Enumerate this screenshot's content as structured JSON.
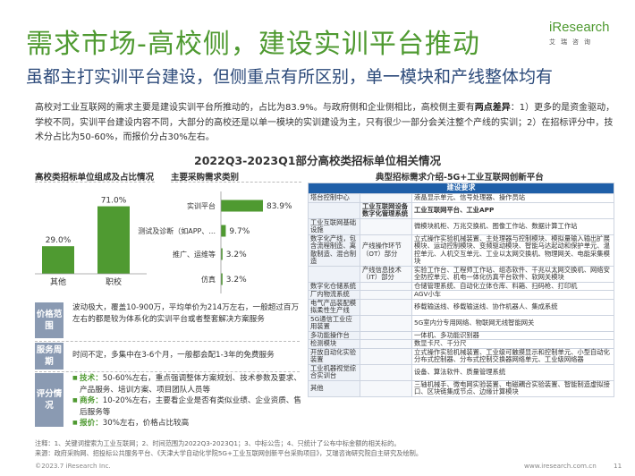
{
  "title": "需求市场-高校侧，建设实训平台推动",
  "subtitle": "虽都主打实训平台建设，但侧重点有所区别，单一模块和产线整体均有",
  "logo": {
    "word": "iResearch",
    "sub": "艾瑞咨询"
  },
  "paragraph": {
    "part1": "高校对工业互联网的需求主要是建设实训平台所推动的，占比为83.9%。与政府侧和企业侧相比，高校侧主要有",
    "bold": "两点差异",
    "part2": "：1）更多的是资金驱动，学校不同，实训平台建设内容不同，大部分的高校还是以单一模块的实训建设为主，只有很少一部分会关注整个产线的实训；2）在招标评分中，技术分占比为50-60%，而报价分占30%左右。"
  },
  "section_title": "2022Q3-2023Q1部分高校类招标单位相关情况",
  "chart_left_title": "高校类招标单位组成及占比情况",
  "chart_mid_title": "主要采购需求类别",
  "chart_right_title": "典型招标需求介绍-5G+工业互联网创新平台",
  "chart_data": [
    {
      "type": "bar",
      "categories": [
        "其他",
        "职校"
      ],
      "values": [
        29.0,
        71.0
      ],
      "labels": [
        "29.0%",
        "71.0%"
      ],
      "ylim": [
        0,
        80
      ],
      "color": "#4f9a31"
    },
    {
      "type": "bar",
      "orientation": "horizontal",
      "categories": [
        "实训平台",
        "测试及诊断（如APP、...",
        "推广、运维等",
        "仿真"
      ],
      "values": [
        83.9,
        9.7,
        3.2,
        3.2
      ],
      "labels": [
        "83.9%",
        "9.7%",
        "3.2%",
        "3.2%"
      ],
      "xlim": [
        0,
        100
      ],
      "color": "#4f9a31"
    }
  ],
  "info": [
    {
      "badge": "价格范围",
      "text": "波动极大，覆盖10-900万，平均单价为214万左右，一般超过百万左右的都是较为体系化的实训平台或者整套解决方案服务"
    },
    {
      "badge": "服务周期",
      "text": "时间不定，多集中在3-6个月，一般都会配1-3年的免费服务"
    },
    {
      "badge": "评分情况",
      "bullets": [
        {
          "key": "技术：",
          "text": "50-60%左右，重点强调整体方案规划、技术参数及要求、产品服务、培训方案、项目团队人员等"
        },
        {
          "key": "商务：",
          "text": "10-20%左右，主要看企业是否有类似业绩、企业资质、售后服务等"
        },
        {
          "key": "报价：",
          "text": "30%左右，价格占比较高"
        }
      ]
    }
  ],
  "table": {
    "header": "建设要求",
    "rows": [
      {
        "c1": "塔台控制中心",
        "c2": "",
        "c3": "液晶显示单元、信号处理器、操作员站"
      },
      {
        "c1": "",
        "c2": "工业互联网设备数字化管理系统",
        "c3": "工业互联网平台、工业APP"
      },
      {
        "c1": "工业互联网基础设施",
        "c2": "",
        "c3": "微模块机柜、万兆交换机、图像工作站、数据计算工作站"
      },
      {
        "c1": "数字化产线，包含流程制造、离散制造、混合制造",
        "c2": "产线操作环节（OT）部分",
        "c3": "立式操作实验机械装置、主处理器与控制模块、模拟量输入输出扩展模块、运动控制模块、变频驱动模块、智能马达起动和保护单元、温控单元、人机交互单元、工业以太网交换机、物理网关、电能采集模块"
      },
      {
        "c1": "",
        "c2": "产线信息技术（IT）部分",
        "c3": "实验工作台、工程师工作站、组态软件、千兆以太网交换机、网络安全防控单元、机电一体化仿真平台软件、软网关模块"
      },
      {
        "c1": "数字化仓储系统",
        "c2": "",
        "c3": "仓储管理系统、自动化立体仓库、料箱、扫码枪、打印机"
      },
      {
        "c1": "厂内物流系统",
        "c2": "",
        "c3": "AGV小车"
      },
      {
        "c1": "电气产品装配模拟柔性生产线",
        "c2": "",
        "c3": "移载输送线、移载输送线、协作机器人、集成系统"
      },
      {
        "c1": "5G通信工业应用装置",
        "c2": "",
        "c3": "5G室内分专用网络、物联网无线智能网关"
      },
      {
        "c1": "多功能操作台",
        "c2": "",
        "c3": "一体机、多功能识别器"
      },
      {
        "c1": "检测模块",
        "c2": "",
        "c3": "数显卡尺、千分尺"
      },
      {
        "c1": "开放自动化实验装置",
        "c2": "",
        "c3": "立式操作实验机械装置、工业级可触摸显示和控制单元、小型自动化分布式控制器、分布式控制交换器网络单元、工业级网络器"
      },
      {
        "c1": "工业机器视觉综合实训台",
        "c2": "",
        "c3": "设备、算法软件、质量管理系统"
      },
      {
        "c1": "其他",
        "c2": "",
        "c3": "三轴机械手、微电网实验装置、电磁耦合实验装置、智能制造虚拟接口、区块链集成节点、边缘计算模块"
      }
    ]
  },
  "notes": [
    "注释：1、关键词搜索为工业互联网；2、时间范围为2022Q3-2023Q1；3、中标公告；4、只统计了公布中标金额的相关标的。",
    "来源：政府采购网、招投标公共服务平台、《天津大学自动化学院5G+工业互联网创新平台采购项目》，艾瑞咨询研究院自主研究及绘制。"
  ],
  "footer": {
    "copyright": "©2023.7 iResearch Inc.",
    "website": "www.iresearch.com.cn",
    "page": "11"
  }
}
